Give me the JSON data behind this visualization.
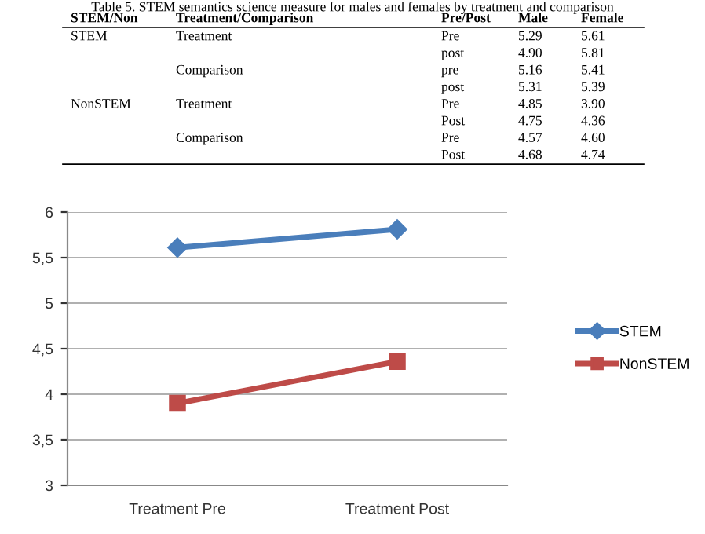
{
  "chart_data": [
    {
      "type": "other",
      "title": "Table 5. STEM semantics science measure for males and females by treatment and comparison",
      "categories": [
        "STEM/Non",
        "Treatment/Comparison",
        "Pre/Post",
        "Male",
        "Female"
      ],
      "cell_labels": [
        [
          "STEM",
          "Treatment",
          "Pre",
          "5.29",
          "5.61"
        ],
        [
          null,
          null,
          "post",
          "4.90",
          "5.81"
        ],
        [
          null,
          "Comparison",
          "pre",
          "5.16",
          "5.41"
        ],
        [
          null,
          null,
          "post",
          "5.31",
          "5.39"
        ],
        [
          "NonSTEM",
          "Treatment",
          "Pre",
          "4.85",
          "3.90"
        ],
        [
          null,
          null,
          "Post",
          "4.75",
          "4.36"
        ],
        [
          null,
          "Comparison",
          "Pre",
          "4.57",
          "4.60"
        ],
        [
          null,
          null,
          "Post",
          "4.68",
          "4.74"
        ]
      ]
    },
    {
      "type": "line",
      "categories": [
        "Treatment Pre",
        "Treatment Post"
      ],
      "series": [
        {
          "name": "STEM",
          "color": "#4a7ebb",
          "marker": "diamond",
          "values": [
            5.61,
            5.81
          ]
        },
        {
          "name": "NonSTEM",
          "color": "#be4b48",
          "marker": "square",
          "values": [
            3.9,
            4.36
          ]
        }
      ],
      "ylim": [
        3,
        6
      ],
      "yticks": [
        3,
        {
          "value": 3.5,
          "label": "3,5"
        },
        4,
        {
          "value": 4.5,
          "label": "4,5"
        },
        5,
        {
          "value": 5.5,
          "label": "5,5"
        },
        6
      ],
      "grid": "y",
      "legend": "right",
      "line_style": "solid"
    }
  ]
}
